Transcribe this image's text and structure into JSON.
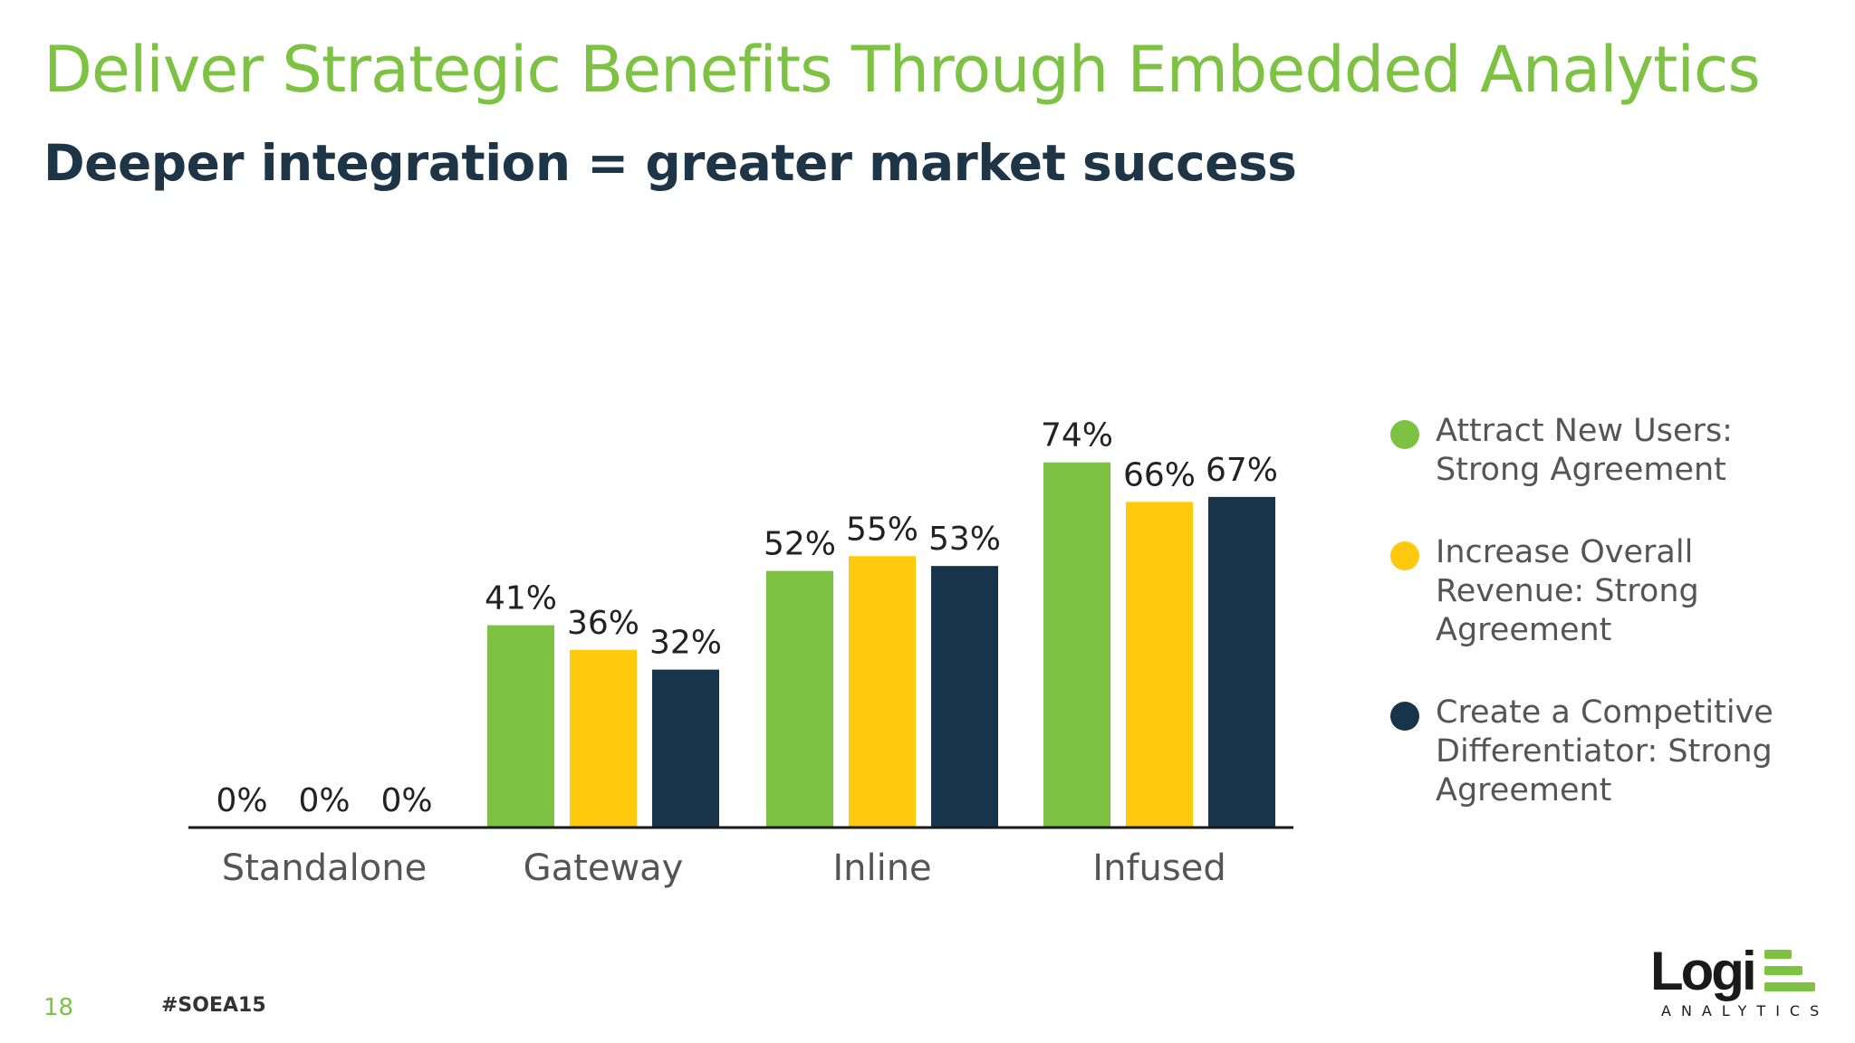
{
  "slide": {
    "title": "Deliver Strategic Benefits Through Embedded Analytics",
    "subtitle": "Deeper integration = greater market success",
    "page_number": "18",
    "hashtag": "#SOEA15"
  },
  "logo": {
    "word": "Logi",
    "sub": "ANALYTICS",
    "color": "#7dc243"
  },
  "chart_data": {
    "type": "bar",
    "categories": [
      "Standalone",
      "Gateway",
      "Inline",
      "Infused"
    ],
    "series": [
      {
        "name": "Attract New Users: Strong Agreement",
        "color": "#7dc243",
        "values": [
          0,
          41,
          52,
          74
        ]
      },
      {
        "name": "Increase Overall Revenue: Strong Agreement",
        "color": "#ffc90e",
        "values": [
          0,
          36,
          55,
          66
        ]
      },
      {
        "name": "Create a Competitive Differentiator: Strong Agreement",
        "color": "#17344a",
        "values": [
          0,
          32,
          53,
          67
        ]
      }
    ],
    "value_suffix": "%",
    "ylim": [
      0,
      100
    ],
    "grid": false,
    "legend_position": "right"
  }
}
